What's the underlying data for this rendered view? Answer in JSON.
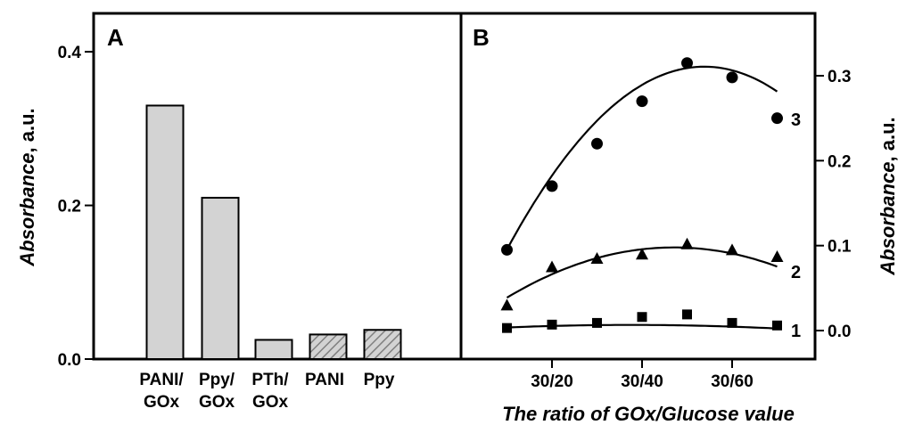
{
  "chart_data": [
    {
      "panel": "A",
      "type": "bar",
      "categories": [
        "PANI/\nGOx",
        "Ppy/\nGOx",
        "PTh/\nGOx",
        "PANI",
        "Ppy"
      ],
      "values": [
        0.33,
        0.21,
        0.025,
        0.032,
        0.038
      ],
      "fills": [
        "solid",
        "solid",
        "solid",
        "hatched",
        "hatched"
      ],
      "ylabel_italic": "Absorbance",
      "ylabel_rest": ", a.u.",
      "ylim": [
        0,
        0.45
      ],
      "yticks": [
        0.0,
        0.2,
        0.4
      ],
      "ytick_labels": [
        "0.0",
        "0.2",
        "0.4"
      ],
      "colors": {
        "bar": "#d3d3d3",
        "hatch": "#808080",
        "edge": "#000000"
      }
    },
    {
      "panel": "B",
      "type": "scatter",
      "xlabel": "The ratio of GOx/Glucose value",
      "ylabel_italic": "Absorbance",
      "ylabel_rest": ", a.u.",
      "xticks": [
        2,
        4,
        6
      ],
      "xtick_labels": [
        "30/20",
        "30/40",
        "30/60"
      ],
      "xlim": [
        0,
        8
      ],
      "ylim": [
        -0.025,
        0.36
      ],
      "yticks": [
        0.0,
        0.1,
        0.2,
        0.3
      ],
      "ytick_labels": [
        "0.0",
        "0.1",
        "0.2",
        "0.3"
      ],
      "x": [
        1,
        2,
        3,
        4,
        5,
        6,
        7
      ],
      "series": [
        {
          "name": "1",
          "marker": "square",
          "values": [
            0.003,
            0.007,
            0.009,
            0.016,
            0.019,
            0.009,
            0.006
          ],
          "fit": [
            0.001,
            0.003,
            -0.0004
          ]
        },
        {
          "name": "2",
          "marker": "triangle",
          "values": [
            0.03,
            0.075,
            0.085,
            0.09,
            0.102,
            0.095,
            0.087
          ],
          "fit": [
            0.0025,
            0.0405,
            -0.0043
          ]
        },
        {
          "name": "3",
          "marker": "circle",
          "values": [
            0.095,
            0.17,
            0.22,
            0.27,
            0.315,
            0.298,
            0.25
          ],
          "fit": [
            -0.014,
            0.1206,
            -0.0112
          ]
        }
      ]
    }
  ],
  "labels": {
    "panel_a": "A",
    "panel_b": "B"
  }
}
